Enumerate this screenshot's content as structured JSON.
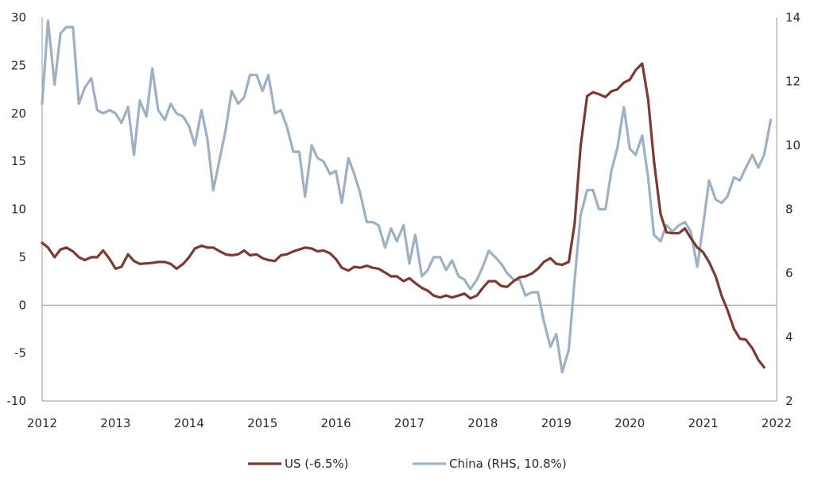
{
  "chart_data": {
    "type": "line",
    "title": "",
    "xlabel": "",
    "ylabel": "",
    "y2label": "",
    "grid": false,
    "legend_position": "bottom-center",
    "xlim": [
      2012,
      2022
    ],
    "x_ticks": [
      2012,
      2013,
      2014,
      2015,
      2016,
      2017,
      2018,
      2019,
      2020,
      2021,
      2022
    ],
    "ylim_left": [
      -10,
      30
    ],
    "y_ticks_left": [
      -10,
      -5,
      0,
      5,
      10,
      15,
      20,
      25,
      30
    ],
    "ylim_right": [
      2,
      14
    ],
    "y_ticks_right": [
      2,
      4,
      6,
      8,
      10,
      12,
      14
    ],
    "zero_line": 0,
    "series": [
      {
        "name": "US (-6.5%)",
        "axis": "left",
        "color": "#7b3a32",
        "points": [
          [
            2012.0,
            6.5
          ],
          [
            2012.08,
            6.0
          ],
          [
            2012.17,
            5.0
          ],
          [
            2012.25,
            5.8
          ],
          [
            2012.33,
            6.0
          ],
          [
            2012.42,
            5.6
          ],
          [
            2012.5,
            5.0
          ],
          [
            2012.58,
            4.7
          ],
          [
            2012.67,
            5.0
          ],
          [
            2012.75,
            5.0
          ],
          [
            2012.83,
            5.7
          ],
          [
            2012.92,
            4.8
          ],
          [
            2013.0,
            3.8
          ],
          [
            2013.08,
            4.0
          ],
          [
            2013.17,
            5.3
          ],
          [
            2013.25,
            4.6
          ],
          [
            2013.33,
            4.3
          ],
          [
            2013.5,
            4.4
          ],
          [
            2013.58,
            4.5
          ],
          [
            2013.67,
            4.5
          ],
          [
            2013.75,
            4.3
          ],
          [
            2013.83,
            3.8
          ],
          [
            2013.92,
            4.3
          ],
          [
            2014.0,
            5.0
          ],
          [
            2014.08,
            5.9
          ],
          [
            2014.17,
            6.2
          ],
          [
            2014.25,
            6.0
          ],
          [
            2014.33,
            6.0
          ],
          [
            2014.42,
            5.6
          ],
          [
            2014.5,
            5.3
          ],
          [
            2014.58,
            5.2
          ],
          [
            2014.67,
            5.3
          ],
          [
            2014.75,
            5.7
          ],
          [
            2014.83,
            5.2
          ],
          [
            2014.92,
            5.3
          ],
          [
            2015.0,
            4.9
          ],
          [
            2015.08,
            4.7
          ],
          [
            2015.17,
            4.6
          ],
          [
            2015.25,
            5.2
          ],
          [
            2015.33,
            5.3
          ],
          [
            2015.42,
            5.6
          ],
          [
            2015.5,
            5.8
          ],
          [
            2015.58,
            6.0
          ],
          [
            2015.67,
            5.9
          ],
          [
            2015.75,
            5.6
          ],
          [
            2015.83,
            5.7
          ],
          [
            2015.92,
            5.4
          ],
          [
            2016.0,
            4.8
          ],
          [
            2016.08,
            3.9
          ],
          [
            2016.17,
            3.6
          ],
          [
            2016.25,
            4.0
          ],
          [
            2016.33,
            3.9
          ],
          [
            2016.42,
            4.1
          ],
          [
            2016.5,
            3.9
          ],
          [
            2016.58,
            3.8
          ],
          [
            2016.67,
            3.4
          ],
          [
            2016.75,
            3.0
          ],
          [
            2016.83,
            3.0
          ],
          [
            2016.92,
            2.5
          ],
          [
            2017.0,
            2.8
          ],
          [
            2017.08,
            2.3
          ],
          [
            2017.17,
            1.8
          ],
          [
            2017.25,
            1.5
          ],
          [
            2017.33,
            1.0
          ],
          [
            2017.42,
            0.8
          ],
          [
            2017.5,
            1.0
          ],
          [
            2017.58,
            0.8
          ],
          [
            2017.67,
            1.0
          ],
          [
            2017.75,
            1.2
          ],
          [
            2017.83,
            0.7
          ],
          [
            2017.92,
            1.0
          ],
          [
            2018.0,
            1.8
          ],
          [
            2018.08,
            2.5
          ],
          [
            2018.17,
            2.5
          ],
          [
            2018.25,
            2.0
          ],
          [
            2018.33,
            1.9
          ],
          [
            2018.42,
            2.5
          ],
          [
            2018.5,
            2.9
          ],
          [
            2018.58,
            3.0
          ],
          [
            2018.67,
            3.3
          ],
          [
            2018.75,
            3.8
          ],
          [
            2018.83,
            4.5
          ],
          [
            2018.92,
            4.9
          ],
          [
            2019.0,
            4.3
          ],
          [
            2019.08,
            4.2
          ],
          [
            2019.17,
            4.5
          ],
          [
            2019.25,
            8.5
          ],
          [
            2019.33,
            16.5
          ],
          [
            2019.42,
            21.8
          ],
          [
            2019.5,
            22.2
          ],
          [
            2019.58,
            22.0
          ],
          [
            2019.67,
            21.7
          ],
          [
            2019.75,
            22.3
          ],
          [
            2019.83,
            22.5
          ],
          [
            2019.92,
            23.2
          ],
          [
            2020.0,
            23.5
          ],
          [
            2020.08,
            24.5
          ],
          [
            2020.17,
            25.2
          ],
          [
            2020.25,
            21.5
          ],
          [
            2020.33,
            15.0
          ],
          [
            2020.42,
            9.5
          ],
          [
            2020.5,
            7.6
          ],
          [
            2020.58,
            7.5
          ],
          [
            2020.67,
            7.5
          ],
          [
            2020.75,
            8.0
          ],
          [
            2020.83,
            7.0
          ],
          [
            2020.92,
            6.0
          ],
          [
            2021.0,
            5.5
          ],
          [
            2021.08,
            4.5
          ],
          [
            2021.17,
            3.0
          ],
          [
            2021.25,
            1.0
          ],
          [
            2021.33,
            -0.5
          ],
          [
            2021.42,
            -2.5
          ],
          [
            2021.5,
            -3.5
          ],
          [
            2021.58,
            -3.6
          ],
          [
            2021.67,
            -4.5
          ],
          [
            2021.75,
            -5.7
          ],
          [
            2021.83,
            -6.5
          ]
        ]
      },
      {
        "name": "China (RHS, 10.8%)",
        "axis": "right",
        "color": "#9eb0c4",
        "points": [
          [
            2012.0,
            11.3
          ],
          [
            2012.08,
            13.9
          ],
          [
            2012.17,
            11.9
          ],
          [
            2012.25,
            13.5
          ],
          [
            2012.33,
            13.7
          ],
          [
            2012.42,
            13.7
          ],
          [
            2012.5,
            11.3
          ],
          [
            2012.58,
            11.8
          ],
          [
            2012.67,
            12.1
          ],
          [
            2012.75,
            11.1
          ],
          [
            2012.83,
            11.0
          ],
          [
            2012.92,
            11.1
          ],
          [
            2013.0,
            11.0
          ],
          [
            2013.08,
            10.7
          ],
          [
            2013.17,
            11.2
          ],
          [
            2013.25,
            9.7
          ],
          [
            2013.33,
            11.4
          ],
          [
            2013.42,
            10.9
          ],
          [
            2013.5,
            12.4
          ],
          [
            2013.58,
            11.1
          ],
          [
            2013.67,
            10.8
          ],
          [
            2013.75,
            11.3
          ],
          [
            2013.83,
            11.0
          ],
          [
            2013.92,
            10.9
          ],
          [
            2014.0,
            10.6
          ],
          [
            2014.08,
            10.0
          ],
          [
            2014.17,
            11.1
          ],
          [
            2014.25,
            10.2
          ],
          [
            2014.33,
            8.6
          ],
          [
            2014.42,
            9.6
          ],
          [
            2014.5,
            10.5
          ],
          [
            2014.58,
            11.7
          ],
          [
            2014.67,
            11.3
          ],
          [
            2014.75,
            11.5
          ],
          [
            2014.83,
            12.2
          ],
          [
            2014.92,
            12.2
          ],
          [
            2015.0,
            11.7
          ],
          [
            2015.08,
            12.2
          ],
          [
            2015.17,
            11.0
          ],
          [
            2015.25,
            11.1
          ],
          [
            2015.33,
            10.6
          ],
          [
            2015.42,
            9.8
          ],
          [
            2015.5,
            9.8
          ],
          [
            2015.58,
            8.4
          ],
          [
            2015.67,
            10.0
          ],
          [
            2015.75,
            9.6
          ],
          [
            2015.83,
            9.5
          ],
          [
            2015.92,
            9.1
          ],
          [
            2016.0,
            9.2
          ],
          [
            2016.08,
            8.2
          ],
          [
            2016.17,
            9.6
          ],
          [
            2016.25,
            9.1
          ],
          [
            2016.33,
            8.5
          ],
          [
            2016.42,
            7.6
          ],
          [
            2016.5,
            7.6
          ],
          [
            2016.58,
            7.5
          ],
          [
            2016.67,
            6.8
          ],
          [
            2016.75,
            7.4
          ],
          [
            2016.83,
            7.0
          ],
          [
            2016.92,
            7.5
          ],
          [
            2017.0,
            6.3
          ],
          [
            2017.08,
            7.2
          ],
          [
            2017.17,
            5.9
          ],
          [
            2017.25,
            6.1
          ],
          [
            2017.33,
            6.5
          ],
          [
            2017.42,
            6.5
          ],
          [
            2017.5,
            6.1
          ],
          [
            2017.58,
            6.4
          ],
          [
            2017.67,
            5.9
          ],
          [
            2017.75,
            5.8
          ],
          [
            2017.83,
            5.5
          ],
          [
            2017.92,
            5.8
          ],
          [
            2018.0,
            6.2
          ],
          [
            2018.08,
            6.7
          ],
          [
            2018.17,
            6.5
          ],
          [
            2018.25,
            6.3
          ],
          [
            2018.33,
            6.0
          ],
          [
            2018.42,
            5.8
          ],
          [
            2018.5,
            5.8
          ],
          [
            2018.58,
            5.3
          ],
          [
            2018.67,
            5.4
          ],
          [
            2018.75,
            5.4
          ],
          [
            2018.83,
            4.5
          ],
          [
            2018.92,
            3.7
          ],
          [
            2019.0,
            4.1
          ],
          [
            2019.08,
            2.9
          ],
          [
            2019.17,
            3.6
          ],
          [
            2019.25,
            5.8
          ],
          [
            2019.33,
            7.8
          ],
          [
            2019.42,
            8.6
          ],
          [
            2019.5,
            8.6
          ],
          [
            2019.58,
            8.0
          ],
          [
            2019.67,
            8.0
          ],
          [
            2019.75,
            9.2
          ],
          [
            2019.83,
            9.9
          ],
          [
            2019.92,
            11.2
          ],
          [
            2020.0,
            9.9
          ],
          [
            2020.08,
            9.7
          ],
          [
            2020.17,
            10.3
          ],
          [
            2020.25,
            9.0
          ],
          [
            2020.33,
            7.2
          ],
          [
            2020.42,
            7.0
          ],
          [
            2020.5,
            7.5
          ],
          [
            2020.58,
            7.3
          ],
          [
            2020.67,
            7.5
          ],
          [
            2020.75,
            7.6
          ],
          [
            2020.83,
            7.3
          ],
          [
            2020.92,
            6.2
          ],
          [
            2021.0,
            7.5
          ],
          [
            2021.08,
            8.9
          ],
          [
            2021.17,
            8.3
          ],
          [
            2021.25,
            8.2
          ],
          [
            2021.33,
            8.4
          ],
          [
            2021.42,
            9.0
          ],
          [
            2021.5,
            8.9
          ],
          [
            2021.58,
            9.3
          ],
          [
            2021.67,
            9.7
          ],
          [
            2021.75,
            9.3
          ],
          [
            2021.83,
            9.7
          ],
          [
            2021.92,
            10.8
          ]
        ]
      }
    ]
  }
}
